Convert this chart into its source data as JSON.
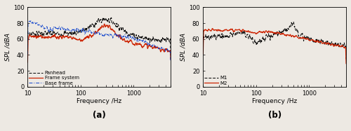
{
  "xlim": [
    10,
    5000
  ],
  "ylim": [
    0,
    100
  ],
  "yticks": [
    0,
    20,
    40,
    60,
    80,
    100
  ],
  "xticks": [
    10,
    100,
    1000
  ],
  "xticklabels": [
    "10",
    "100",
    "1000"
  ],
  "ylabel": "SPL /dBA",
  "xlabel": "Frequency /Hz",
  "label_a": "(a)",
  "label_b": "(b)",
  "legend_a": [
    "Panhead",
    "Frame system",
    "Base frame"
  ],
  "legend_b": [
    "M1",
    "M2"
  ],
  "bg_color": "#ede9e3",
  "line_color_black": "#000000",
  "line_color_red": "#cc2200",
  "line_color_blue": "#1144cc"
}
